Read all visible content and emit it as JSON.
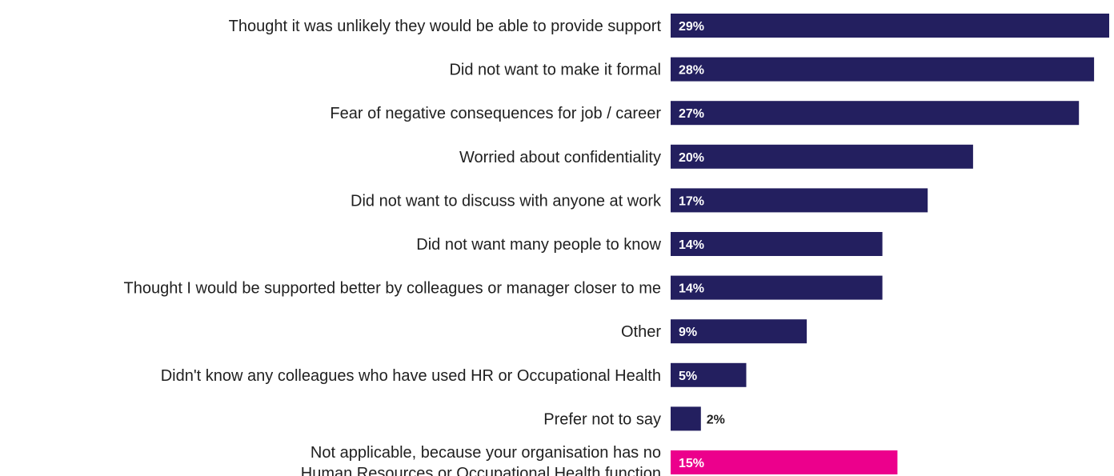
{
  "chart_data": {
    "type": "bar",
    "orientation": "horizontal",
    "title": "",
    "xlabel": "",
    "ylabel": "",
    "xlim": [
      0,
      29
    ],
    "grid": false,
    "legend": "none",
    "value_suffix": "%",
    "colors": {
      "default": "#231f5f",
      "highlight": "#ec008c",
      "label_inside": "#ffffff",
      "label_outside": "#1f1f1f"
    },
    "categories": [
      [
        "Thought it was unlikely they would be able to provide support"
      ],
      [
        "Did not want to make it formal"
      ],
      [
        "Fear of negative consequences for job / career"
      ],
      [
        "Worried about confidentiality"
      ],
      [
        "Did not want to discuss with anyone at work"
      ],
      [
        "Did not want many people to know"
      ],
      [
        "Thought I would be supported better by colleagues or manager closer to me"
      ],
      [
        "Other"
      ],
      [
        "Didn't know any colleagues who have used HR or Occupational Health"
      ],
      [
        "Prefer not to say"
      ],
      [
        "Not applicable, because your organisation has no",
        "Human Resources or Occupational Health function"
      ]
    ],
    "values": [
      29,
      28,
      27,
      20,
      17,
      14,
      14,
      9,
      5,
      2,
      15
    ],
    "highlight": [
      false,
      false,
      false,
      false,
      false,
      false,
      false,
      false,
      false,
      false,
      true
    ]
  }
}
